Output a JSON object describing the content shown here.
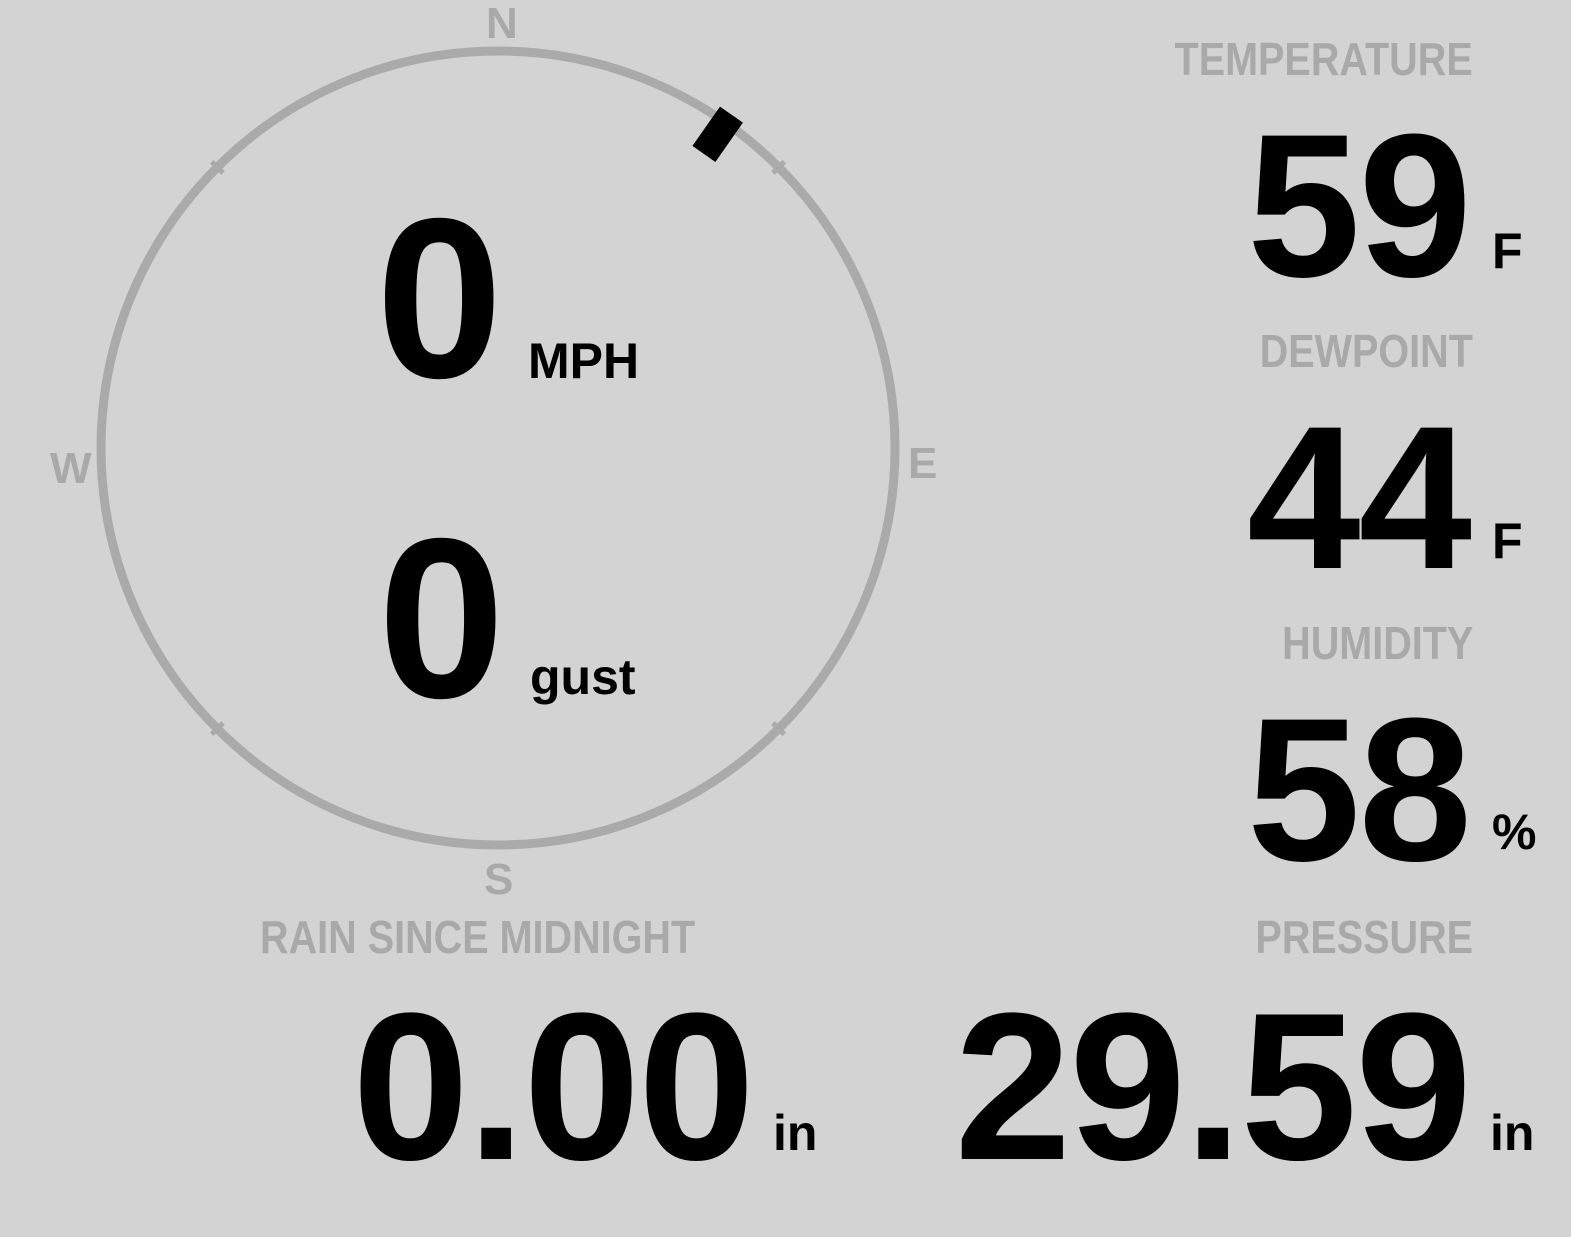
{
  "wind": {
    "compass": {
      "north": "N",
      "east": "E",
      "south": "S",
      "west": "W"
    },
    "direction_deg": 35,
    "speed": "0",
    "speed_unit": "MPH",
    "gust": "0",
    "gust_unit": "gust"
  },
  "temperature": {
    "label": "TEMPERATURE",
    "value": "59",
    "unit": "F"
  },
  "dewpoint": {
    "label": "DEWPOINT",
    "value": "44",
    "unit": "F"
  },
  "humidity": {
    "label": "HUMIDITY",
    "value": "58",
    "unit": "%"
  },
  "rain": {
    "label": "RAIN SINCE MIDNIGHT",
    "value": "0.00",
    "unit": "in"
  },
  "pressure": {
    "label": "PRESSURE",
    "value": "29.59",
    "unit": "in"
  },
  "colors": {
    "background": "#d3d3d3",
    "label": "#a9a9a9",
    "value": "#000000",
    "dial": "#aaaaaa"
  }
}
